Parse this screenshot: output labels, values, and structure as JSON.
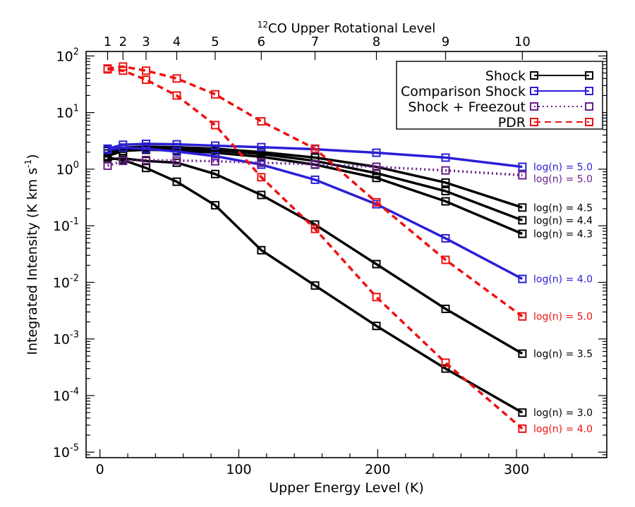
{
  "chart_data": {
    "type": "line",
    "title": "",
    "xlabel": "Upper Energy Level (K)",
    "ylabel_main": "Integrated Intensity (K km s",
    "ylabel_sup": "-1",
    "ylabel_close": ")",
    "top_axis": {
      "label_sup": "12",
      "label_main": "CO Upper Rotational Level",
      "ticks": [
        {
          "label": "1",
          "E": 5.5
        },
        {
          "label": "2",
          "E": 16.6
        },
        {
          "label": "3",
          "E": 33.2
        },
        {
          "label": "4",
          "E": 55.3
        },
        {
          "label": "5",
          "E": 83.0
        },
        {
          "label": "6",
          "E": 116.2
        },
        {
          "label": "7",
          "E": 154.9
        },
        {
          "label": "8",
          "E": 199.1
        },
        {
          "label": "9",
          "E": 248.9
        },
        {
          "label": "10",
          "E": 304.2
        }
      ]
    },
    "xlim": [
      -10,
      365
    ],
    "x_ticks": [
      0,
      100,
      200,
      300
    ],
    "x_tick_labels": [
      "0",
      "100",
      "200",
      "300"
    ],
    "y_scale": "log",
    "ylim": [
      8e-06,
      120
    ],
    "y_ticks": [
      {
        "base": "10",
        "exp": "-5",
        "value": 1e-05
      },
      {
        "base": "10",
        "exp": "-4",
        "value": 0.0001
      },
      {
        "base": "10",
        "exp": "-3",
        "value": 0.001
      },
      {
        "base": "10",
        "exp": "-2",
        "value": 0.01
      },
      {
        "base": "10",
        "exp": "-1",
        "value": 0.1
      },
      {
        "base": "10",
        "exp": "0",
        "value": 1
      },
      {
        "base": "10",
        "exp": "1",
        "value": 10
      },
      {
        "base": "10",
        "exp": "2",
        "value": 100
      }
    ],
    "x": [
      5.5,
      16.6,
      33.2,
      55.3,
      83.0,
      116.2,
      154.9,
      199.1,
      248.9,
      304.2
    ],
    "legend_position": "top-right",
    "legend": [
      {
        "label": "Shock",
        "color": "#000000",
        "style": "solid"
      },
      {
        "label": "Comparison Shock",
        "color": "#2a1fd6",
        "style": "solid"
      },
      {
        "label": "Shock + Freezout",
        "color": "#6a1f8a",
        "style": "dotted"
      },
      {
        "label": "PDR",
        "color": "#ee1111",
        "style": "dashed"
      }
    ],
    "series": [
      {
        "group": "Shock",
        "label": "log(n) = 4.5",
        "color": "#000000",
        "style": "solid",
        "values": [
          2.1,
          2.4,
          2.5,
          2.45,
          2.3,
          2.0,
          1.6,
          1.1,
          0.58,
          0.21
        ]
      },
      {
        "group": "Shock",
        "label": "log(n) = 4.4",
        "color": "#000000",
        "style": "solid",
        "values": [
          1.9,
          2.3,
          2.4,
          2.35,
          2.15,
          1.85,
          1.4,
          0.85,
          0.41,
          0.125
        ]
      },
      {
        "group": "Shock",
        "label": "log(n) = 4.3",
        "color": "#000000",
        "style": "solid",
        "values": [
          1.7,
          2.1,
          2.2,
          2.15,
          1.95,
          1.65,
          1.2,
          0.7,
          0.27,
          0.072
        ]
      },
      {
        "group": "Shock",
        "label": "log(n) = 3.5",
        "color": "#000000",
        "style": "solid",
        "values": [
          1.5,
          1.55,
          1.4,
          1.3,
          0.82,
          0.35,
          0.105,
          0.021,
          0.0034,
          0.00055
        ]
      },
      {
        "group": "Shock",
        "label": "log(n) = 3.0",
        "color": "#000000",
        "style": "solid",
        "values": [
          1.6,
          1.45,
          1.05,
          0.6,
          0.23,
          0.037,
          0.0088,
          0.0017,
          0.0003,
          5e-05
        ]
      },
      {
        "group": "Comparison Shock",
        "label": "log(n) = 5.0",
        "color": "#2a1fd6",
        "style": "solid",
        "values": [
          2.3,
          2.7,
          2.8,
          2.75,
          2.6,
          2.45,
          2.25,
          1.95,
          1.6,
          1.1
        ]
      },
      {
        "group": "Comparison Shock",
        "label": "log(n) = 4.0",
        "color": "#2a1fd6",
        "style": "solid",
        "values": [
          2.2,
          2.4,
          2.3,
          2.05,
          1.7,
          1.2,
          0.65,
          0.24,
          0.06,
          0.0115
        ]
      },
      {
        "group": "Shock + Freezout",
        "label": "log(n) = 5.0",
        "color": "#6a1f8a",
        "style": "dotted",
        "values": [
          1.15,
          1.4,
          1.45,
          1.42,
          1.38,
          1.3,
          1.22,
          1.1,
          0.95,
          0.78
        ]
      },
      {
        "group": "PDR",
        "label": "log(n) = 5.0",
        "color": "#ee1111",
        "style": "dashed",
        "values": [
          60,
          65,
          55,
          40,
          21,
          7.0,
          2.3,
          0.26,
          0.025,
          0.0025
        ]
      },
      {
        "group": "PDR",
        "label": "log(n) = 4.0",
        "color": "#ee1111",
        "style": "dashed",
        "values": [
          58,
          55,
          38,
          20,
          6.0,
          0.72,
          0.088,
          0.0055,
          0.00038,
          2.6e-05
        ]
      }
    ]
  }
}
